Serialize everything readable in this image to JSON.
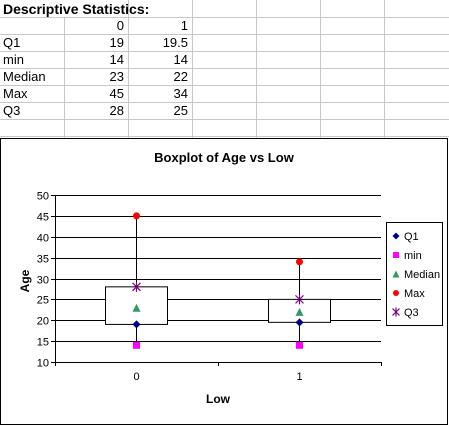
{
  "sheet": {
    "header_title": "Descriptive Statistics:",
    "col_headers": [
      "0",
      "1"
    ],
    "rows": [
      {
        "label": "Q1",
        "c0": "19",
        "c1": "19.5"
      },
      {
        "label": "min",
        "c0": "14",
        "c1": "14"
      },
      {
        "label": "Median",
        "c0": "23",
        "c1": "22"
      },
      {
        "label": "Max",
        "c0": "45",
        "c1": "34"
      },
      {
        "label": "Q3",
        "c0": "28",
        "c1": "25"
      }
    ]
  },
  "chart_data": {
    "type": "boxplot",
    "title": "Boxplot of Age vs Low",
    "xlabel": "Low",
    "ylabel": "Age",
    "ylim": [
      10,
      50
    ],
    "yticks": [
      10,
      15,
      20,
      25,
      30,
      35,
      40,
      45,
      50
    ],
    "categories": [
      "0",
      "1"
    ],
    "grid": true,
    "legend_position": "right",
    "series": [
      {
        "name": "Q1",
        "values": [
          19,
          19.5
        ],
        "color": "#000080",
        "marker": "diamond"
      },
      {
        "name": "min",
        "values": [
          14,
          14
        ],
        "color": "#ff00ff",
        "marker": "square"
      },
      {
        "name": "Median",
        "values": [
          23,
          22
        ],
        "color": "#339966",
        "marker": "triangle"
      },
      {
        "name": "Max",
        "values": [
          45,
          34
        ],
        "color": "#ff0000",
        "marker": "circle"
      },
      {
        "name": "Q3",
        "values": [
          28,
          25
        ],
        "color": "#800080",
        "marker": "star"
      }
    ]
  }
}
